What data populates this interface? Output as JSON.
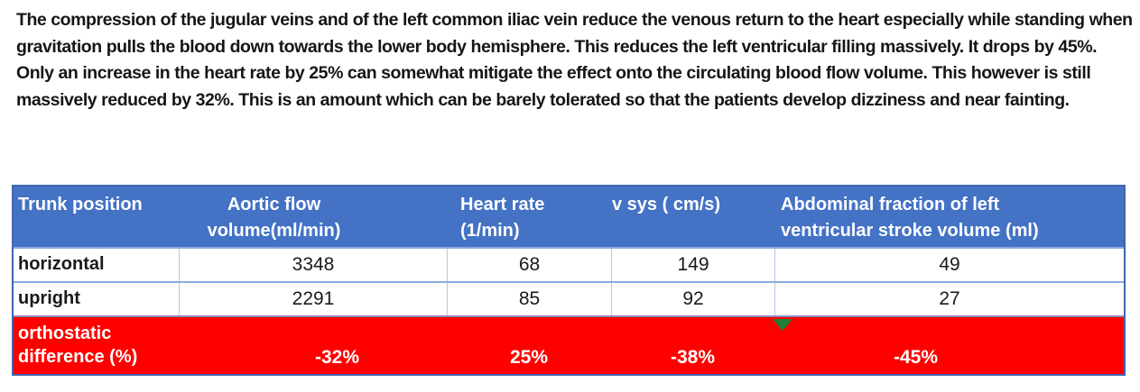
{
  "paragraph": "The compression of the jugular veins and of the left common iliac vein reduce the venous return to the heart especially while standing when gravitation pulls the blood down towards the lower body hemisphere. This reduces the left ventricular filling massively. It drops by 45%. Only an increase in the heart rate by 25% can somewhat mitigate the effect onto the circulating blood flow volume. This however is still massively reduced by 32%. This is an amount which can be barely tolerated so that the patients develop dizziness and near fainting.",
  "table": {
    "headers": [
      "Trunk position",
      "Aortic flow\nvolume(ml/min)",
      "Heart rate\n(1/min)",
      "v sys ( cm/s)",
      "Abdominal fraction of left\nventricular stroke volume (ml)"
    ],
    "rows": [
      {
        "label": "horizontal",
        "values": [
          "3348",
          "68",
          "149",
          "49"
        ]
      },
      {
        "label": "upright",
        "values": [
          "2291",
          "85",
          "92",
          "27"
        ]
      }
    ],
    "footer": {
      "label": "orthostatic\ndifference (%)",
      "values": [
        "-32%",
        "25%",
        "-38%",
        "-45%"
      ]
    }
  },
  "colors": {
    "header_bg": "#4472C4",
    "header_text": "#FFFFFF",
    "footer_bg": "#FE0000",
    "footer_text": "#FFFFFF",
    "grid_line": "#8EAADB",
    "column_divider": "#B7C7E4",
    "outer_border": "#4265AE",
    "marker_green": "#1E7E34",
    "body_text": "#161616"
  }
}
